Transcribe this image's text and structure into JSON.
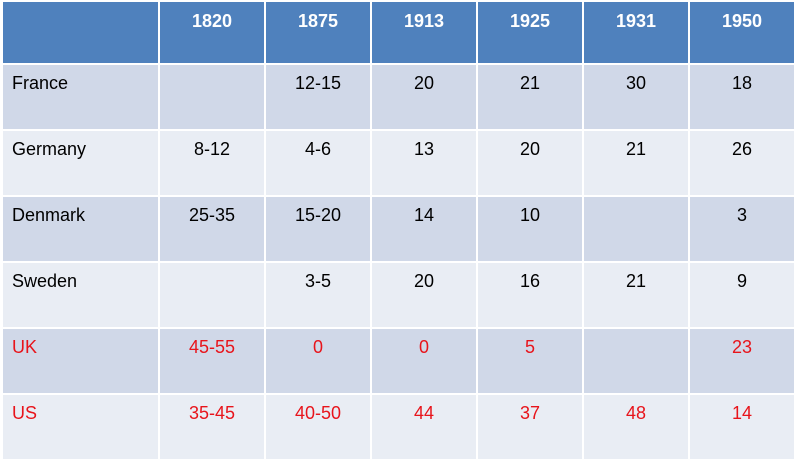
{
  "table": {
    "corner": "",
    "years": [
      "1820",
      "1875",
      "1913",
      "1925",
      "1931",
      "1950"
    ],
    "rows": [
      {
        "country": "France",
        "values": [
          "",
          "12-15",
          "20",
          "21",
          "30",
          "18"
        ],
        "highlight": false
      },
      {
        "country": "Germany",
        "values": [
          "8-12",
          "4-6",
          "13",
          "20",
          "21",
          "26"
        ],
        "highlight": false
      },
      {
        "country": "Denmark",
        "values": [
          "25-35",
          "15-20",
          "14",
          "10",
          "",
          "3"
        ],
        "highlight": false
      },
      {
        "country": "Sweden",
        "values": [
          "",
          "3-5",
          "20",
          "16",
          "21",
          "9"
        ],
        "highlight": false
      },
      {
        "country": "UK",
        "values": [
          "45-55",
          "0",
          "0",
          "5",
          "",
          "23"
        ],
        "highlight": true
      },
      {
        "country": "US",
        "values": [
          "35-45",
          "40-50",
          "44",
          "37",
          "48",
          "14"
        ],
        "highlight": true
      }
    ]
  },
  "colors": {
    "header_bg": "#4f81bd",
    "row_band_dark": "#d0d8e8",
    "row_band_light": "#e9edf4",
    "highlight_text": "#e8141b"
  }
}
